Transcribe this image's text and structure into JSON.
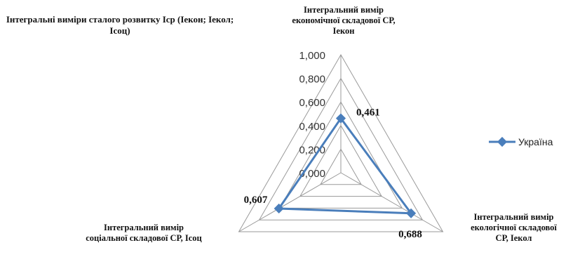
{
  "chart_data": {
    "type": "radar",
    "title": "Інтегральні виміри сталого розвитку Іср   (Іекон;  Іекол;  Ісоц)",
    "axes": [
      {
        "key": "econ",
        "label_lines": [
          "Інтегральний вимір",
          "економічної складової СР,",
          "Іекон"
        ]
      },
      {
        "key": "ecol",
        "label_lines": [
          "Інтегральний вимір",
          "екологічної складової",
          "СР, Іекол"
        ]
      },
      {
        "key": "soc",
        "label_lines": [
          "Інтегральний вимір",
          "соціальної складової СР, Ісоц"
        ]
      }
    ],
    "rlim": [
      0,
      1
    ],
    "ticks": [
      "0,000",
      "0,200",
      "0,400",
      "0,600",
      "0,800",
      "1,000"
    ],
    "tick_values": [
      0,
      0.2,
      0.4,
      0.6,
      0.8,
      1.0
    ],
    "grid": true,
    "legend_position": "right",
    "series": [
      {
        "name": "Україна",
        "values": [
          0.461,
          0.688,
          0.607
        ],
        "data_labels": [
          "0,461",
          "0,688",
          "0,607"
        ],
        "color": "#4a7ebb"
      }
    ]
  }
}
